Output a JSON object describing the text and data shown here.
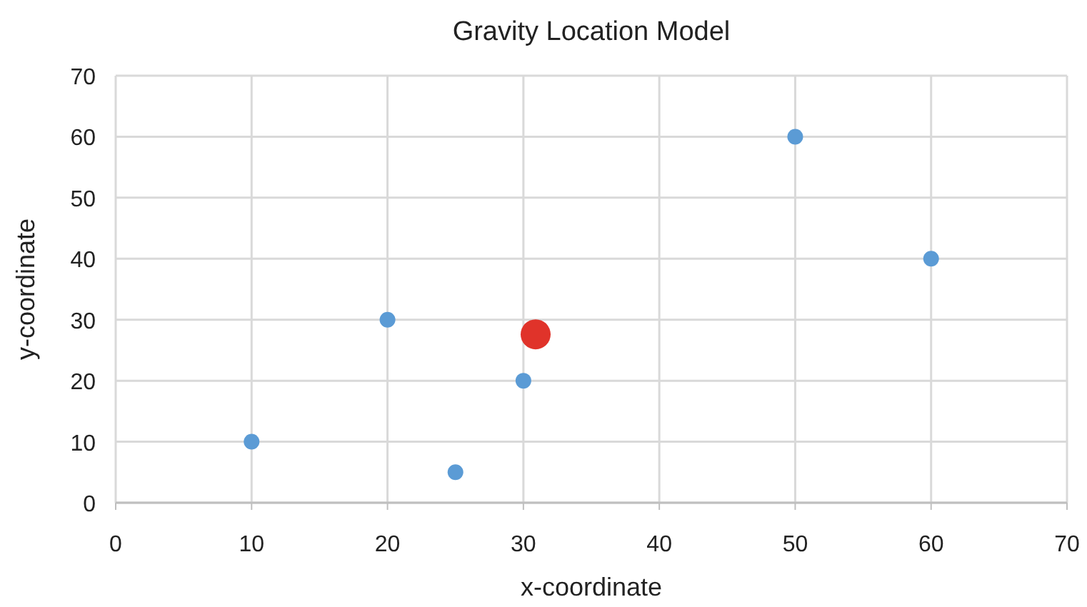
{
  "chart_data": {
    "type": "scatter",
    "title": "Gravity Location Model",
    "xlabel": "x-coordinate",
    "ylabel": "y-coordinate",
    "xlim": [
      0,
      70
    ],
    "xticks": [
      0,
      10,
      20,
      30,
      40,
      50,
      60,
      70
    ],
    "ylim": [
      0,
      70
    ],
    "yticks": [
      0,
      10,
      20,
      30,
      40,
      50,
      60,
      70
    ],
    "grid": true,
    "marker": "circle",
    "series": [
      {
        "color": "#5b9bd5",
        "x": [
          10,
          20,
          25,
          30,
          50,
          60
        ],
        "values": [
          10,
          30,
          5,
          20,
          60,
          40
        ]
      },
      {
        "color": "#e0332a",
        "x": [
          30.9
        ],
        "values": [
          27.6
        ]
      }
    ]
  }
}
